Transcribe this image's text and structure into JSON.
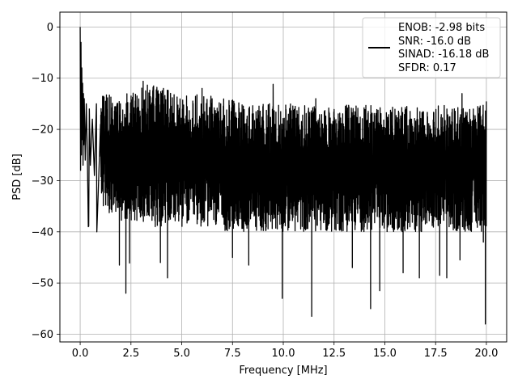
{
  "chart_data": {
    "type": "line",
    "title": "",
    "xlabel": "Frequency [MHz]",
    "ylabel": "PSD [dB]",
    "xlim": [
      -0.999,
      20.999
    ],
    "ylim": [
      -61.5,
      2.9
    ],
    "xticks": [
      0.0,
      2.5,
      5.0,
      7.5,
      10.0,
      12.5,
      15.0,
      17.5,
      20.0
    ],
    "xtick_labels": [
      "0.0",
      "2.5",
      "5.0",
      "7.5",
      "10.0",
      "12.5",
      "15.0",
      "17.5",
      "20.0"
    ],
    "yticks": [
      0,
      -10,
      -20,
      -30,
      -40,
      -50,
      -60
    ],
    "ytick_labels": [
      "0",
      "−10",
      "−20",
      "−30",
      "−40",
      "−50",
      "−60"
    ],
    "grid": true,
    "line_color": "#000000",
    "legend": {
      "placement": "top-right",
      "entries": [
        "ENOB: -2.98 bits",
        "SNR: -16.0 dB",
        "SINAD: -16.18 dB",
        "SFDR: 0.17"
      ]
    },
    "series": [
      {
        "x": [
          0.0,
          0.02,
          0.04,
          0.06,
          0.08,
          0.1,
          0.12,
          0.14,
          0.16,
          0.18,
          0.2,
          0.25,
          0.3,
          0.35,
          0.4,
          0.45,
          0.5,
          0.6,
          0.7,
          0.8,
          0.9,
          1.0
        ],
        "y": [
          0,
          -28,
          -3,
          -25,
          -8,
          -22,
          -11,
          -27,
          -13,
          -23,
          -14,
          -26,
          -15,
          -24,
          -39,
          -16,
          -27,
          -18,
          -29,
          -15,
          -31,
          -19
        ],
        "envelope": {
          "x": [
            0.0,
            1.0,
            2.0,
            2.5,
            3.0,
            3.3,
            4.0,
            5.0,
            6.0,
            7.0,
            7.5,
            8.0,
            9.0,
            10.0,
            11.0,
            12.0,
            13.0,
            14.0,
            15.0,
            16.0,
            17.0,
            18.0,
            19.0,
            20.0
          ],
          "upper": [
            -15,
            -12,
            -13,
            -13,
            -12,
            -11,
            -12,
            -13,
            -13,
            -14,
            -14,
            -15,
            -15,
            -15,
            -15,
            -16,
            -15,
            -15,
            -16,
            -15,
            -16,
            -15,
            -16,
            -15
          ],
          "lower": [
            -28,
            -35,
            -38,
            -38,
            -38,
            -39,
            -39,
            -39,
            -39,
            -40,
            -40,
            -40,
            -40,
            -40,
            -40,
            -40,
            -40,
            -40,
            -40,
            -40,
            -40,
            -40,
            -40,
            -40
          ]
        },
        "deep_dips": [
          {
            "x": 0.42,
            "y": -38.9
          },
          {
            "x": 0.82,
            "y": -40.0
          },
          {
            "x": 1.93,
            "y": -46.5
          },
          {
            "x": 2.25,
            "y": -52.0
          },
          {
            "x": 2.43,
            "y": -46.1
          },
          {
            "x": 3.95,
            "y": -46.0
          },
          {
            "x": 4.3,
            "y": -49.0
          },
          {
            "x": 7.5,
            "y": -45.0
          },
          {
            "x": 8.3,
            "y": -46.5
          },
          {
            "x": 9.95,
            "y": -53.0
          },
          {
            "x": 11.4,
            "y": -56.5
          },
          {
            "x": 13.4,
            "y": -47.0
          },
          {
            "x": 14.3,
            "y": -55.0
          },
          {
            "x": 14.75,
            "y": -51.5
          },
          {
            "x": 15.9,
            "y": -48.0
          },
          {
            "x": 16.7,
            "y": -49.0
          },
          {
            "x": 17.7,
            "y": -48.5
          },
          {
            "x": 18.05,
            "y": -49.0
          },
          {
            "x": 18.7,
            "y": -45.5
          },
          {
            "x": 19.85,
            "y": -42.0
          },
          {
            "x": 19.95,
            "y": -58.0
          }
        ],
        "peaks": [
          {
            "x": 0.06,
            "y": 0.0
          },
          {
            "x": 0.1,
            "y": -3.0
          },
          {
            "x": 0.14,
            "y": -7.5
          },
          {
            "x": 1.0,
            "y": -10.8
          },
          {
            "x": 3.1,
            "y": -10.6
          },
          {
            "x": 4.1,
            "y": -12.0
          },
          {
            "x": 6.0,
            "y": -12.0
          },
          {
            "x": 9.5,
            "y": -11.2
          },
          {
            "x": 11.6,
            "y": -14.0
          },
          {
            "x": 18.8,
            "y": -13.0
          },
          {
            "x": 20.0,
            "y": -14.6
          }
        ]
      }
    ]
  }
}
